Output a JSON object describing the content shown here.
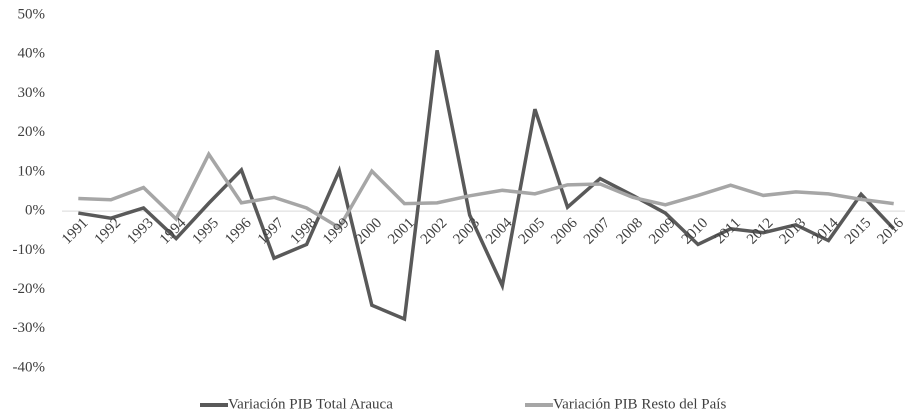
{
  "chart_data": {
    "type": "line",
    "categories": [
      "1991",
      "1992",
      "1993",
      "1994",
      "1995",
      "1996",
      "1997",
      "1998",
      "1999",
      "2000",
      "2001",
      "2002",
      "2003",
      "2004",
      "2005",
      "2006",
      "2007",
      "2008",
      "2009",
      "2010",
      "2011",
      "2012",
      "2013",
      "2014",
      "2015",
      "2016"
    ],
    "series": [
      {
        "name": "Variación PIB Total Arauca",
        "color": "#595959",
        "values": [
          -0.5,
          -1.8,
          0.8,
          -7,
          2,
          10.5,
          -12,
          -8.5,
          10.3,
          -24,
          -27.5,
          41,
          -1,
          -19,
          26,
          1,
          8.3,
          4,
          -0.5,
          -8.5,
          -4.5,
          -5.5,
          -3.5,
          -7.5,
          4.3,
          -4.5
        ]
      },
      {
        "name": "Variación PIB Resto del País",
        "color": "#a6a6a6",
        "values": [
          3.2,
          2.9,
          6,
          -2,
          14.5,
          2.1,
          3.5,
          0.8,
          -4.2,
          10.2,
          1.9,
          2.1,
          3.9,
          5.3,
          4.4,
          6.7,
          6.9,
          3.5,
          1.6,
          4,
          6.6,
          4,
          4.9,
          4.4,
          3,
          1.9
        ]
      }
    ],
    "ylim": [
      -40,
      50
    ],
    "yticks": [
      {
        "value": -40,
        "label": "-40%"
      },
      {
        "value": -30,
        "label": "-30%"
      },
      {
        "value": -20,
        "label": "-20%"
      },
      {
        "value": -10,
        "label": "-10%"
      },
      {
        "value": 0,
        "label": "0%"
      },
      {
        "value": 10,
        "label": "10%"
      },
      {
        "value": 20,
        "label": "20%"
      },
      {
        "value": 30,
        "label": "30%"
      },
      {
        "value": 40,
        "label": "40%"
      },
      {
        "value": 50,
        "label": "50%"
      }
    ],
    "grid": false,
    "legend": "bottom"
  }
}
